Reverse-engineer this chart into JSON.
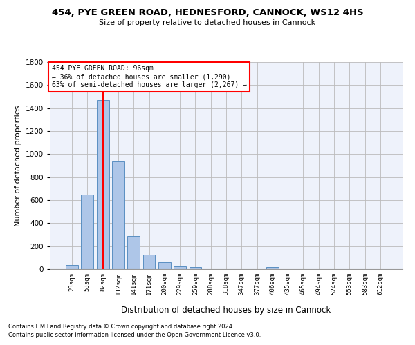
{
  "title1": "454, PYE GREEN ROAD, HEDNESFORD, CANNOCK, WS12 4HS",
  "title2": "Size of property relative to detached houses in Cannock",
  "xlabel": "Distribution of detached houses by size in Cannock",
  "ylabel": "Number of detached properties",
  "bar_color": "#aec6e8",
  "bar_edge_color": "#5a8fc2",
  "categories": [
    "23sqm",
    "53sqm",
    "82sqm",
    "112sqm",
    "141sqm",
    "171sqm",
    "200sqm",
    "229sqm",
    "259sqm",
    "288sqm",
    "318sqm",
    "347sqm",
    "377sqm",
    "406sqm",
    "435sqm",
    "465sqm",
    "494sqm",
    "524sqm",
    "553sqm",
    "583sqm",
    "612sqm"
  ],
  "values": [
    38,
    650,
    1470,
    935,
    290,
    125,
    63,
    22,
    18,
    0,
    0,
    0,
    0,
    18,
    0,
    0,
    0,
    0,
    0,
    0,
    0
  ],
  "ylim": [
    0,
    1800
  ],
  "yticks": [
    0,
    200,
    400,
    600,
    800,
    1000,
    1200,
    1400,
    1600,
    1800
  ],
  "red_line_index": 2,
  "annotation_line1": "454 PYE GREEN ROAD: 96sqm",
  "annotation_line2": "← 36% of detached houses are smaller (1,290)",
  "annotation_line3": "63% of semi-detached houses are larger (2,267) →",
  "footer1": "Contains HM Land Registry data © Crown copyright and database right 2024.",
  "footer2": "Contains public sector information licensed under the Open Government Licence v3.0.",
  "background_color": "#eef2fb",
  "grid_color": "#bbbbbb",
  "fig_width": 6.0,
  "fig_height": 5.0,
  "dpi": 100
}
